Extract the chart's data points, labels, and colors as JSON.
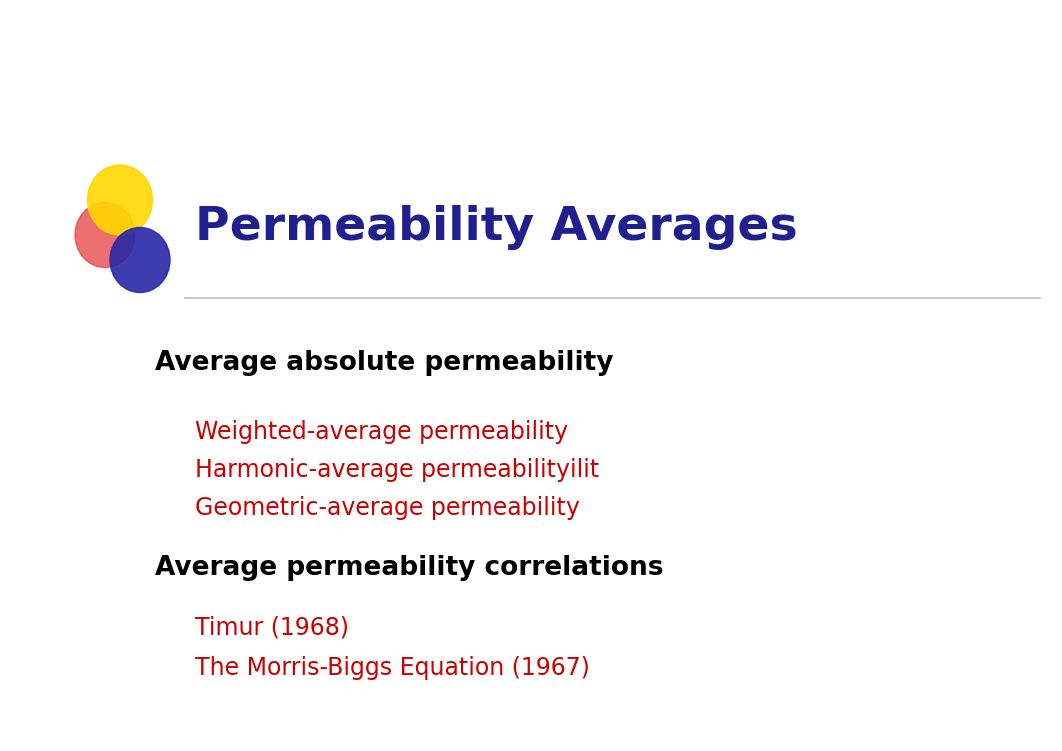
{
  "title": "Permeability Averages",
  "title_color": "#1F1F8F",
  "title_fontsize": 34,
  "background_color": "#ffffff",
  "section1_header": "Average absolute permeability",
  "section1_color": "#000000",
  "section1_fontsize": 19,
  "bullet1_items": [
    "Weighted-average permeability",
    "Harmonic-average permeabilityilit",
    "Geometric-average permeability"
  ],
  "bullet1_color": "#CC0000",
  "bullet1_fontsize": 17,
  "section2_header": "Average permeability correlations",
  "section2_color": "#000000",
  "section2_fontsize": 19,
  "bullet2_items": [
    "Timur (1968)",
    "The Morris-Biggs Equation (1967)"
  ],
  "bullet2_color": "#CC0000",
  "bullet2_fontsize": 17
}
